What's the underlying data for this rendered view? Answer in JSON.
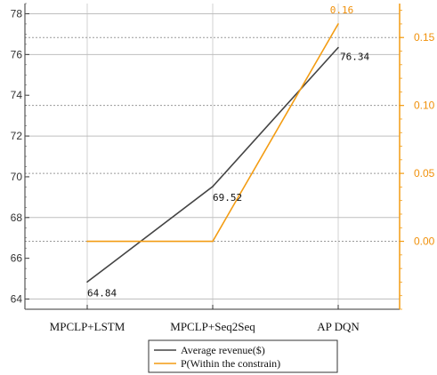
{
  "chart_data": {
    "type": "line",
    "categories": [
      "MPCLP+LSTM",
      "MPCLP+Seq2Seq",
      "AP DQN"
    ],
    "series": [
      {
        "name": "Average revenue($)",
        "axis": "left",
        "color": "#444444",
        "values": [
          64.84,
          69.52,
          76.34
        ],
        "data_labels": [
          "64.84",
          "69.52",
          "76.34"
        ]
      },
      {
        "name": "P(Within the constrain)",
        "axis": "right",
        "color": "#f39c12",
        "values": [
          0.0,
          0.0,
          0.16
        ],
        "data_labels": [
          "",
          "",
          "0.16"
        ]
      }
    ],
    "y_left": {
      "ylim": [
        63.5,
        78.5
      ],
      "ticks": [
        "64",
        "66",
        "68",
        "70",
        "72",
        "74",
        "76",
        "78"
      ],
      "tick_values": [
        64,
        66,
        68,
        70,
        72,
        74,
        76,
        78
      ]
    },
    "y_right": {
      "ylim": [
        -0.05,
        0.175
      ],
      "ticks": [
        "0.00",
        "0.05",
        "0.10",
        "0.15"
      ],
      "tick_values": [
        0.0,
        0.05,
        0.1,
        0.15
      ],
      "color": "#f0900a"
    },
    "grid": true,
    "legend": "bottom-center",
    "title": "",
    "xlabel": "",
    "ylabel": ""
  }
}
